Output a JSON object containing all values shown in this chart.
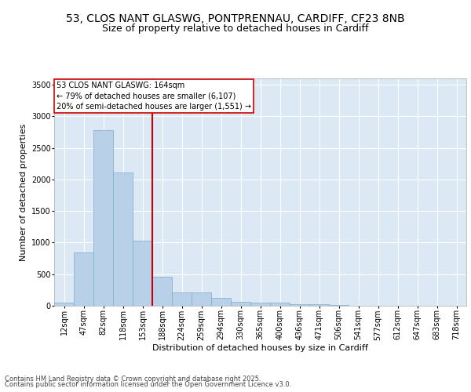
{
  "title_line1": "53, CLOS NANT GLASWG, PONTPRENNAU, CARDIFF, CF23 8NB",
  "title_line2": "Size of property relative to detached houses in Cardiff",
  "xlabel": "Distribution of detached houses by size in Cardiff",
  "ylabel": "Number of detached properties",
  "categories": [
    "12sqm",
    "47sqm",
    "82sqm",
    "118sqm",
    "153sqm",
    "188sqm",
    "224sqm",
    "259sqm",
    "294sqm",
    "330sqm",
    "365sqm",
    "400sqm",
    "436sqm",
    "471sqm",
    "506sqm",
    "541sqm",
    "577sqm",
    "612sqm",
    "647sqm",
    "683sqm",
    "718sqm"
  ],
  "values": [
    55,
    850,
    2780,
    2110,
    1030,
    455,
    215,
    215,
    130,
    65,
    55,
    50,
    30,
    20,
    10,
    5,
    2,
    1,
    0,
    0,
    0
  ],
  "bar_color": "#b8d0e8",
  "bar_edge_color": "#7aaec8",
  "vline_color": "#cc0000",
  "annotation_title": "53 CLOS NANT GLASWG: 164sqm",
  "annotation_line2": "← 79% of detached houses are smaller (6,107)",
  "annotation_line3": "20% of semi-detached houses are larger (1,551) →",
  "annotation_box_color": "#cc0000",
  "ylim": [
    0,
    3600
  ],
  "yticks": [
    0,
    500,
    1000,
    1500,
    2000,
    2500,
    3000,
    3500
  ],
  "background_color": "#dce9f5",
  "footer_line1": "Contains HM Land Registry data © Crown copyright and database right 2025.",
  "footer_line2": "Contains public sector information licensed under the Open Government Licence v3.0.",
  "title_fontsize": 10,
  "subtitle_fontsize": 9,
  "axis_label_fontsize": 8,
  "tick_fontsize": 7,
  "annotation_fontsize": 7,
  "footer_fontsize": 6
}
